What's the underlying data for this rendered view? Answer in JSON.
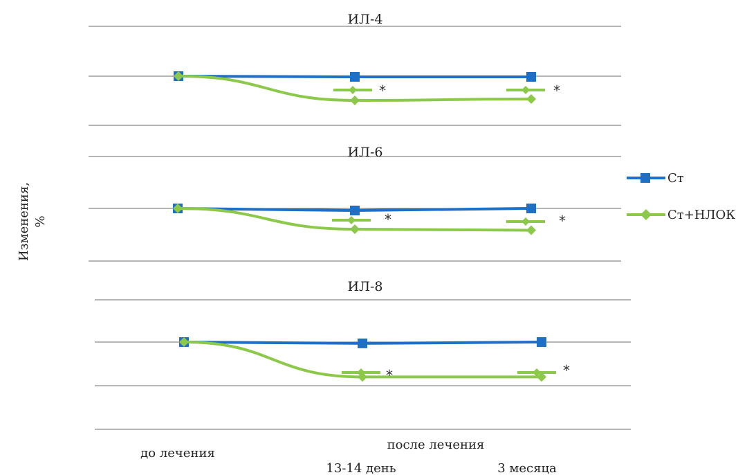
{
  "chart_data": {
    "type": "line",
    "ylabel_line1": "Изменения,",
    "ylabel_line2": "%",
    "x_labels": {
      "baseline": "до лечения",
      "group": "после лечения",
      "points": [
        "13-14 день",
        "3 месяца"
      ]
    },
    "legend": {
      "position": "right",
      "entries": [
        {
          "name": "Ст",
          "color": "#1f6fc5",
          "marker": "square"
        },
        {
          "name": "Ст+НЛОК",
          "color": "#8cc94a",
          "marker": "diamond"
        }
      ]
    },
    "significance_marker": "*",
    "panels": [
      {
        "title": "ИЛ-4",
        "x": [
          "до лечения",
          "13-14 день",
          "3 месяца"
        ],
        "series": [
          {
            "name": "Ст",
            "values": [
              0,
              -1,
              -1
            ]
          },
          {
            "name": "Ст+НЛОК",
            "values": [
              0,
              -35,
              -33
            ]
          }
        ],
        "significant": [
          1,
          2
        ]
      },
      {
        "title": "ИЛ-6",
        "x": [
          "до лечения",
          "13-14 день",
          "3 месяца"
        ],
        "series": [
          {
            "name": "Ст",
            "values": [
              0,
              -2,
              0
            ]
          },
          {
            "name": "Ст+НЛОК",
            "values": [
              0,
              -20,
              -21
            ]
          }
        ],
        "significant": [
          1,
          2
        ]
      },
      {
        "title": "ИЛ-8",
        "x": [
          "до лечения",
          "13-14 день",
          "3 месяца"
        ],
        "series": [
          {
            "name": "Ст",
            "values": [
              0,
              -3,
              0
            ]
          },
          {
            "name": "Ст+НЛОК",
            "values": [
              0,
              -80,
              -80
            ]
          }
        ],
        "significant": [
          1,
          2
        ]
      }
    ]
  }
}
